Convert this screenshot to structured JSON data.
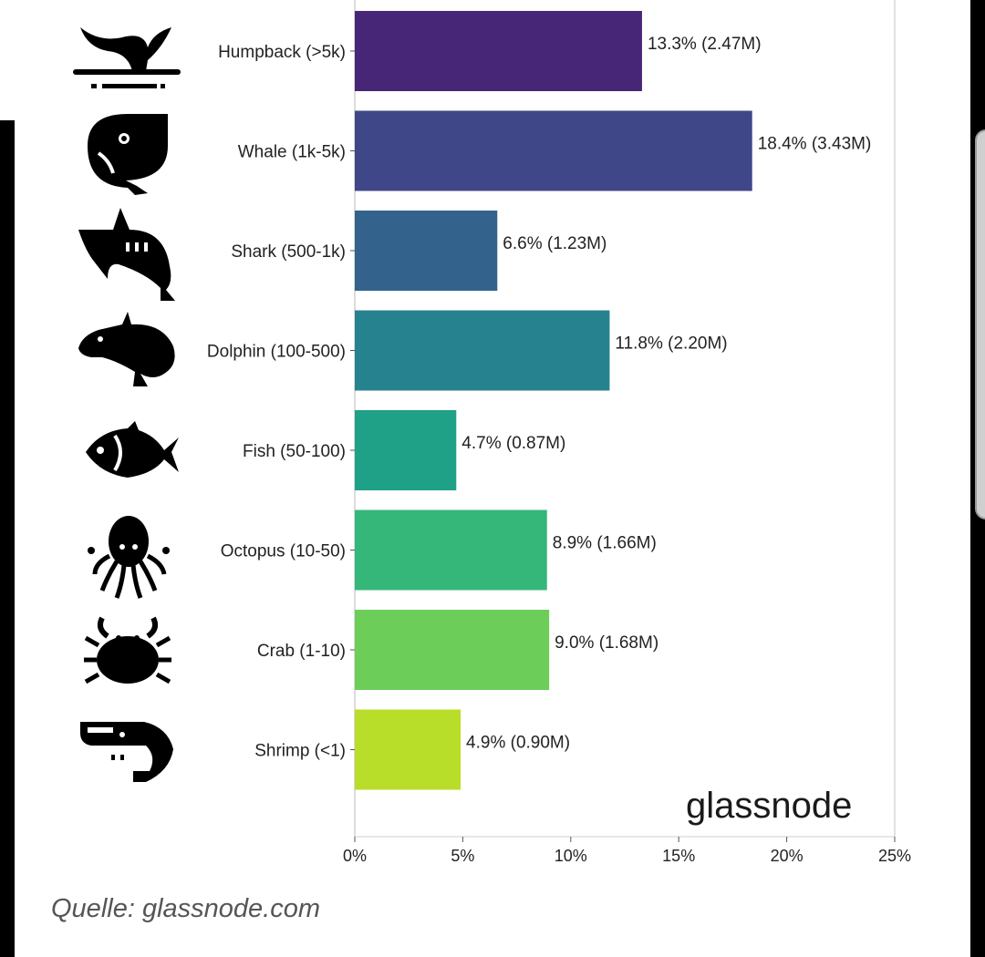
{
  "colors": {
    "bars": [
      "#482677",
      "#3f4788",
      "#33638d",
      "#26828e",
      "#1fa187",
      "#35b779",
      "#6dcd59",
      "#b8de29"
    ]
  },
  "chart_data": {
    "type": "bar",
    "orientation": "horizontal",
    "categories": [
      "Humpback (>5k)",
      "Whale (1k-5k)",
      "Shark (500-1k)",
      "Dolphin (100-500)",
      "Fish (50-100)",
      "Octopus (10-50)",
      "Crab (1-10)",
      "Shrimp (<1)"
    ],
    "values": [
      13.3,
      18.4,
      6.6,
      11.8,
      4.7,
      8.9,
      9.0,
      4.9
    ],
    "data_labels": [
      "13.3% (2.47M)",
      "18.4% (3.43M)",
      "6.6% (1.23M)",
      "11.8% (2.20M)",
      "4.7% (0.87M)",
      "8.9% (1.66M)",
      "9.0% (1.68M)",
      "4.9% (0.90M)"
    ],
    "icons": [
      "humpback-icon",
      "whale-icon",
      "shark-icon",
      "dolphin-icon",
      "fish-icon",
      "octopus-icon",
      "crab-icon",
      "shrimp-icon"
    ],
    "xlim": [
      0,
      25
    ],
    "x_ticks": [
      "0%",
      "5%",
      "10%",
      "15%",
      "20%",
      "25%"
    ],
    "grid": "vertical line at 25%",
    "title": "",
    "xlabel": "",
    "ylabel": ""
  },
  "brand": "glassnode",
  "source": "Quelle: glassnode.com"
}
